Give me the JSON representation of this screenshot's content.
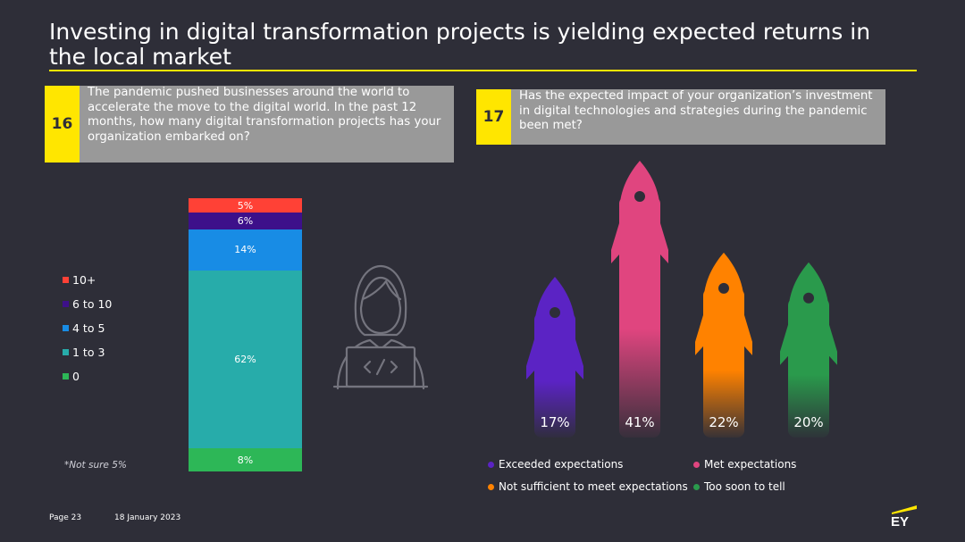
{
  "title": "Investing in digital transformation projects is yielding expected returns in the local market",
  "q16": {
    "number": "16",
    "text": "The pandemic pushed businesses around the world to accelerate the move to the digital world. In the past 12 months, how many digital transformation projects has your organization embarked on?"
  },
  "q17": {
    "number": "17",
    "text": "Has the expected impact of your organization’s investment in digital technologies and strategies during the pandemic been met?"
  },
  "note16": "*Not sure  5%",
  "footer": {
    "page": "Page 23",
    "date": "18 January 2023"
  },
  "logo_text": "EY",
  "chart_data": [
    {
      "type": "bar",
      "stacked": true,
      "categories": [
        ""
      ],
      "series": [
        {
          "name": "0",
          "values": [
            8
          ],
          "label": "8%",
          "color": "#2db757"
        },
        {
          "name": "1 to 3",
          "values": [
            62
          ],
          "label": "62%",
          "color": "#27acaa"
        },
        {
          "name": "4 to 5",
          "values": [
            14
          ],
          "label": "14%",
          "color": "#188ce5"
        },
        {
          "name": "6 to 10",
          "values": [
            6
          ],
          "label": "6%",
          "color": "#3d108a"
        },
        {
          "name": "10+",
          "values": [
            5
          ],
          "label": "5%",
          "color": "#ff4136"
        }
      ],
      "legend_order": [
        "10+",
        "6 to 10",
        "4 to 5",
        "1 to 3",
        "0"
      ],
      "legend_position": "left"
    },
    {
      "type": "bar",
      "categories": [
        "Exceeded expectations",
        "Met expectations",
        "Not sufficient to meet expectations",
        "Too soon to tell"
      ],
      "values": [
        17,
        41,
        22,
        20
      ],
      "labels": [
        "17%",
        "41%",
        "22%",
        "20%"
      ],
      "colors": [
        "#5b23c4",
        "#e0457f",
        "#ff8200",
        "#2a9a4c"
      ],
      "legend_position": "bottom"
    }
  ]
}
